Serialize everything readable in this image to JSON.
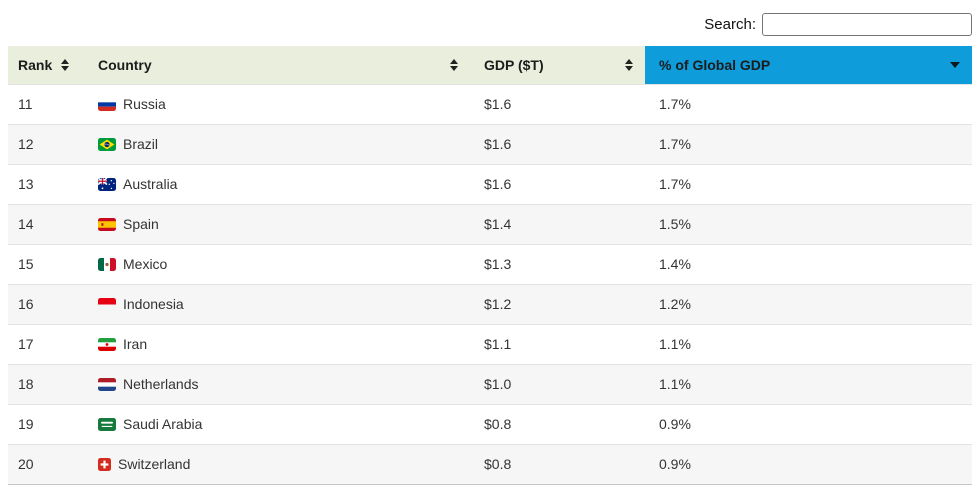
{
  "search": {
    "label": "Search:",
    "value": ""
  },
  "table": {
    "columns": [
      {
        "label": "Rank",
        "sort_state": "unsorted"
      },
      {
        "label": "Country",
        "sort_state": "unsorted"
      },
      {
        "label": "GDP ($T)",
        "sort_state": "unsorted"
      },
      {
        "label": "% of Global GDP",
        "sort_state": "sorted-descending"
      }
    ],
    "rows": [
      {
        "rank": "11",
        "country": "Russia",
        "flag": "ru",
        "gdp": "$1.6",
        "pct": "1.7%"
      },
      {
        "rank": "12",
        "country": "Brazil",
        "flag": "br",
        "gdp": "$1.6",
        "pct": "1.7%"
      },
      {
        "rank": "13",
        "country": "Australia",
        "flag": "au",
        "gdp": "$1.6",
        "pct": "1.7%"
      },
      {
        "rank": "14",
        "country": "Spain",
        "flag": "es",
        "gdp": "$1.4",
        "pct": "1.5%"
      },
      {
        "rank": "15",
        "country": "Mexico",
        "flag": "mx",
        "gdp": "$1.3",
        "pct": "1.4%"
      },
      {
        "rank": "16",
        "country": "Indonesia",
        "flag": "id",
        "gdp": "$1.2",
        "pct": "1.2%"
      },
      {
        "rank": "17",
        "country": "Iran",
        "flag": "ir",
        "gdp": "$1.1",
        "pct": "1.1%"
      },
      {
        "rank": "18",
        "country": "Netherlands",
        "flag": "nl",
        "gdp": "$1.0",
        "pct": "1.1%"
      },
      {
        "rank": "19",
        "country": "Saudi Arabia",
        "flag": "sa",
        "gdp": "$0.8",
        "pct": "0.9%"
      },
      {
        "rank": "20",
        "country": "Switzerland",
        "flag": "ch",
        "gdp": "$0.8",
        "pct": "0.9%"
      }
    ]
  },
  "colors": {
    "header_bg": "#e9eedd",
    "sorted_header_bg": "#0e9cdb",
    "stripe_bg": "#f6f6f6",
    "row_border": "#e2e2e2",
    "table_bottom_border": "#c6c6c6",
    "body_text": "#333333",
    "header_text": "#1c1c1c"
  }
}
